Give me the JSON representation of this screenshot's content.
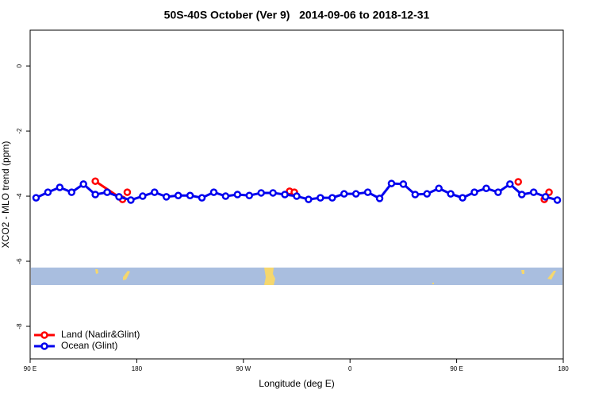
{
  "chart_data": {
    "type": "line",
    "title": "50S-40S October (Ver 9)   2014-09-06 to 2018-12-31",
    "x_label": "Longitude (deg E)",
    "y_label": "XCO2 - MLO trend (ppm)",
    "xlim": [
      90,
      540
    ],
    "ylim": [
      -9.0,
      1.1
    ],
    "xticks": [
      {
        "value": 90,
        "label": "90 E"
      },
      {
        "value": 180,
        "label": "180"
      },
      {
        "value": 270,
        "label": "90 W"
      },
      {
        "value": 360,
        "label": "0"
      },
      {
        "value": 450,
        "label": "90 E"
      },
      {
        "value": 540,
        "label": "180"
      }
    ],
    "yticks": [
      0,
      -2,
      -4,
      -6,
      -8
    ],
    "legend": "bottom-left",
    "series": [
      {
        "name": "Land (Nadir&Glint)",
        "color": "#ff0000",
        "x": [
          145,
          168,
          170,
          172,
          200,
          309,
          313,
          400,
          502,
          510,
          524,
          528
        ],
        "values": [
          -3.54,
          -4.1,
          null,
          -3.88,
          null,
          -3.85,
          -3.88,
          null,
          -3.56,
          null,
          -4.1,
          -3.88
        ]
      },
      {
        "name": "Ocean (Glint)",
        "color": "#0000ee",
        "x": [
          95,
          105,
          115,
          125,
          135,
          145,
          155,
          165,
          175,
          185,
          195,
          205,
          215,
          225,
          235,
          245,
          255,
          265,
          275,
          285,
          295,
          305,
          315,
          325,
          335,
          345,
          355,
          365,
          375,
          385,
          395,
          405,
          415,
          425,
          435,
          445,
          455,
          465,
          475,
          485,
          495,
          505,
          515,
          525,
          535
        ],
        "values": [
          -4.05,
          -3.88,
          -3.73,
          -3.88,
          -3.63,
          -3.95,
          -3.88,
          -4.02,
          -4.12,
          -4.0,
          -3.88,
          -4.02,
          -3.98,
          -3.98,
          -4.05,
          -3.88,
          -4.0,
          -3.95,
          -3.98,
          -3.9,
          -3.9,
          -3.95,
          -4.0,
          -4.1,
          -4.05,
          -4.05,
          -3.93,
          -3.93,
          -3.88,
          -4.07,
          -3.61,
          -3.63,
          -3.95,
          -3.93,
          -3.76,
          -3.93,
          -4.05,
          -3.88,
          -3.76,
          -3.88,
          -3.63,
          -3.95,
          -3.88,
          -4.02,
          -4.12
        ]
      }
    ]
  }
}
